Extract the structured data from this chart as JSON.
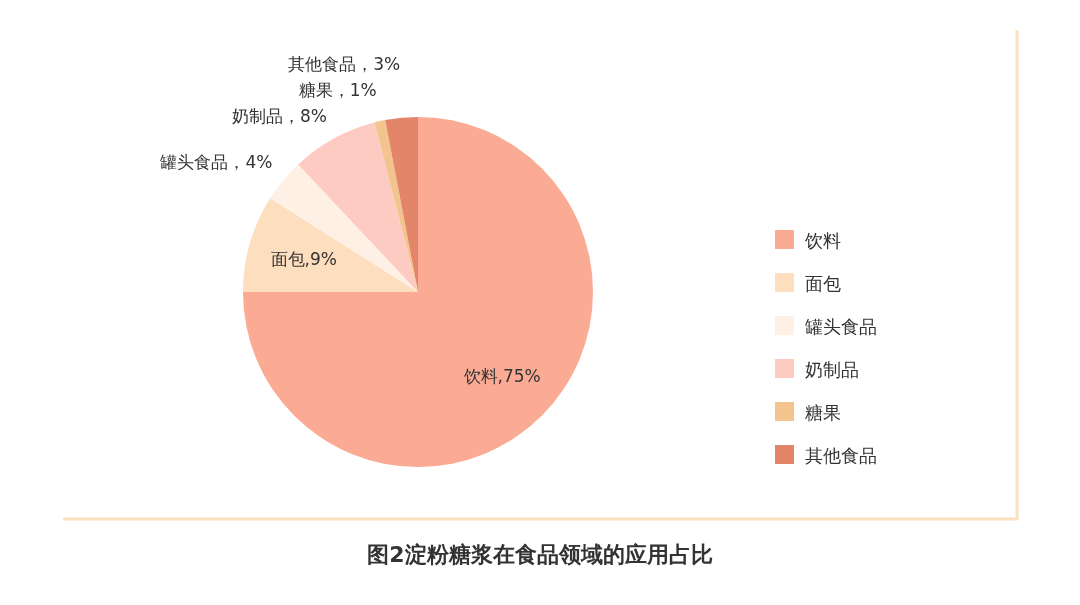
{
  "chart_data": {
    "type": "pie",
    "title": "图2淀粉糖浆在食品领域的应用占比",
    "categories": [
      "饮料",
      "面包",
      "罐头食品",
      "奶制品",
      "糖果",
      "其他食品"
    ],
    "values": [
      75,
      9,
      4,
      8,
      1,
      3
    ],
    "colors": [
      "#fbab94",
      "#fddfbf",
      "#fef0e4",
      "#fdcbc1",
      "#f4c48f",
      "#e38569"
    ],
    "value_labels": [
      "饮料,75%",
      "面包,9%",
      "罐头食品，4%",
      "奶制品，8%",
      "糖果，1%",
      "其他食品，3%"
    ],
    "legend": "right"
  }
}
